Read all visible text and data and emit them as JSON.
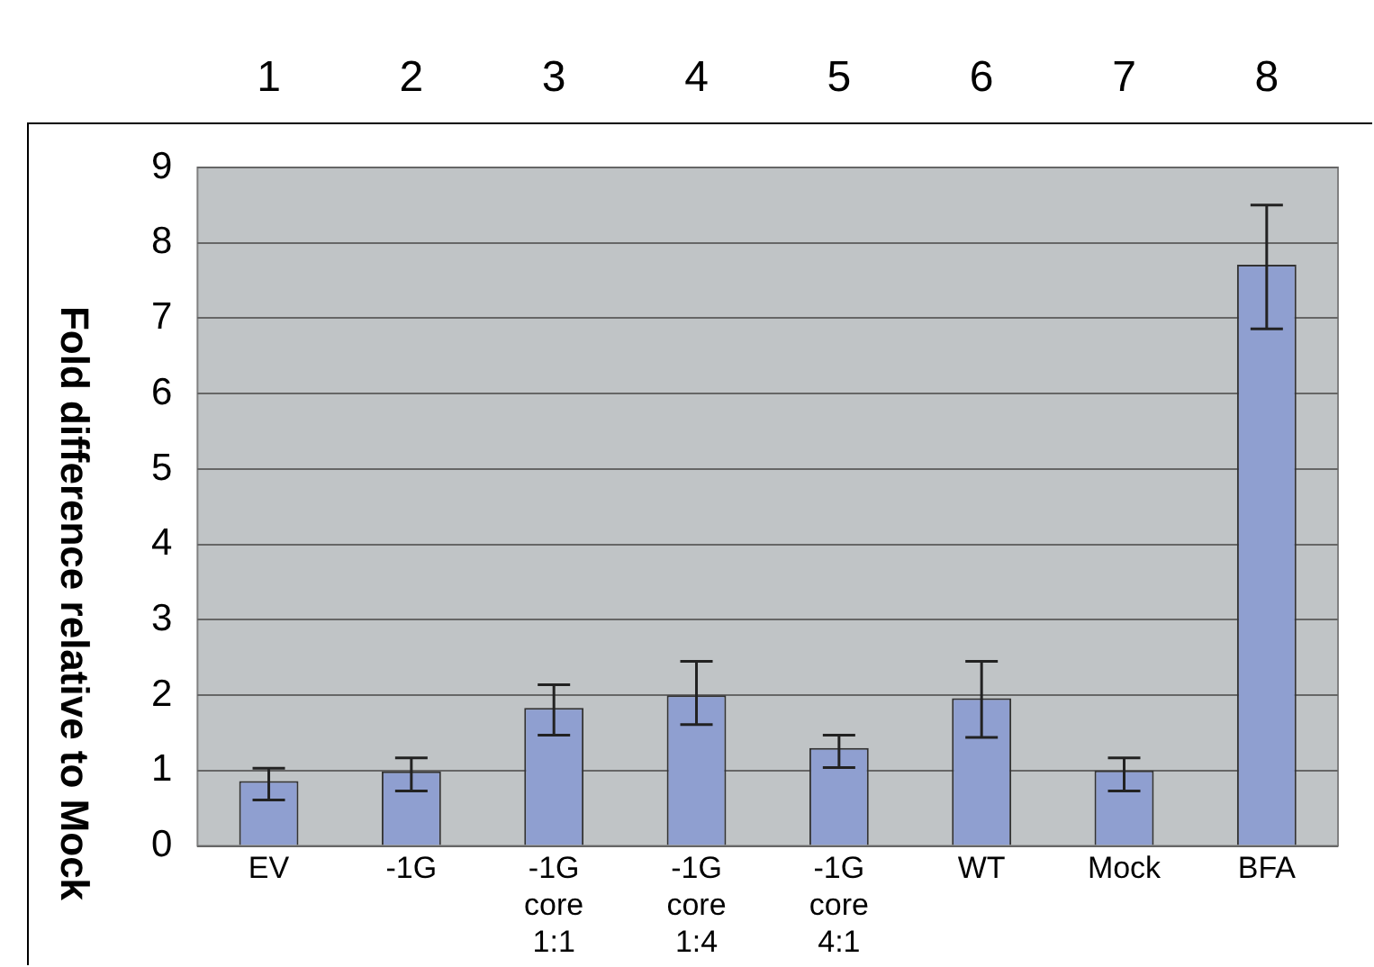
{
  "chart_data": {
    "type": "bar",
    "ylabel": "Fold difference relative to Mock",
    "categories": [
      "EV",
      "-1G",
      "-1G core 1:1",
      "-1G core 1:4",
      "-1G core 4:1",
      "WT",
      "Mock",
      "BFA"
    ],
    "values": [
      0.86,
      0.99,
      1.83,
      2.0,
      1.3,
      1.96,
      1.0,
      7.71
    ],
    "errors": [
      [
        0.61,
        1.03
      ],
      [
        0.73,
        1.17
      ],
      [
        1.47,
        2.14
      ],
      [
        1.61,
        2.45
      ],
      [
        1.04,
        1.47
      ],
      [
        1.44,
        2.45
      ],
      [
        0.73,
        1.17
      ],
      [
        6.86,
        8.5
      ]
    ],
    "color": "#8f9fd0",
    "ylim": [
      0,
      9
    ],
    "yticks": [
      0,
      1,
      2,
      3,
      4,
      5,
      6,
      7,
      8,
      9
    ],
    "grid": "y",
    "legend": false,
    "annotations": [
      "1",
      "2",
      "3",
      "4",
      "5",
      "6",
      "7",
      "8"
    ]
  }
}
